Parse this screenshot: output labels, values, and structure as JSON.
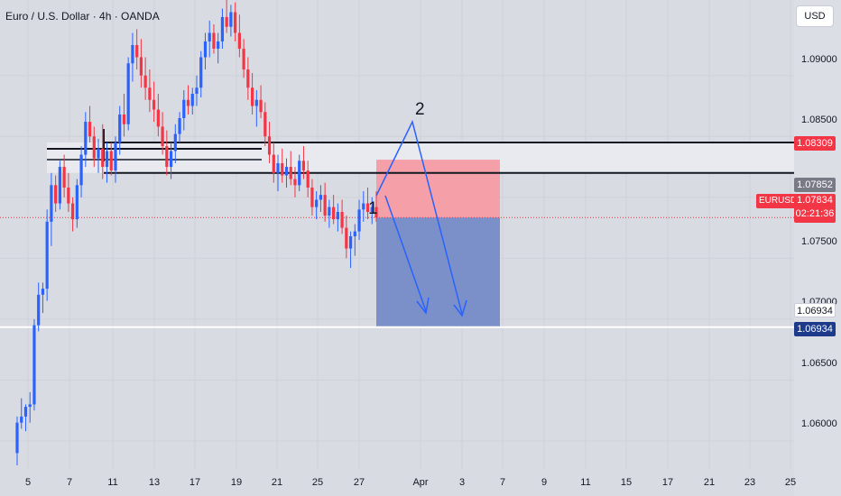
{
  "header": {
    "title": "Euro / U.S. Dollar · 4h · OANDA"
  },
  "currency_button": "USD",
  "price_axis": {
    "ticks": [
      "1.09000",
      "1.08500",
      "1.07500",
      "1.07000",
      "1.06500",
      "1.06000"
    ],
    "tags": {
      "resistance": "1.08309",
      "prev_close": "1.07852",
      "symbol": "EURUSD",
      "last": "1.07834",
      "countdown": "02:21:36",
      "support_white": "1.06934",
      "support_blue": "1.06934"
    }
  },
  "time_axis": {
    "ticks": [
      "5",
      "7",
      "11",
      "13",
      "17",
      "19",
      "21",
      "25",
      "27",
      "Apr",
      "3",
      "7",
      "9",
      "11",
      "15",
      "17",
      "21",
      "23",
      "25"
    ]
  },
  "annotations": {
    "wave1": "1",
    "wave2": "2"
  },
  "colors": {
    "bg": "#d9dbe2",
    "up": "#2962ff",
    "down": "#f23645",
    "zone": "#e9eaef",
    "stop": "#f5a0a8",
    "target": "#7b8fc9"
  },
  "chart_data": {
    "type": "candlestick",
    "symbol": "EURUSD",
    "timeframe": "4h",
    "ylim": [
      1.0577,
      1.0962
    ],
    "levels": {
      "resistance_top": 1.0845,
      "resistance_bottom": 1.082,
      "entry": 1.07834,
      "stop": 1.08309,
      "target": 1.06934
    },
    "candles": [
      [
        1.059,
        1.062,
        1.058,
        1.0615
      ],
      [
        1.0615,
        1.0635,
        1.061,
        1.062
      ],
      [
        1.062,
        1.063,
        1.0608,
        1.0628
      ],
      [
        1.0628,
        1.064,
        1.0615,
        1.063
      ],
      [
        1.063,
        1.07,
        1.0625,
        1.0695
      ],
      [
        1.0695,
        1.073,
        1.069,
        1.072
      ],
      [
        1.072,
        1.073,
        1.0705,
        1.0725
      ],
      [
        1.0725,
        1.079,
        1.0715,
        1.078
      ],
      [
        1.078,
        1.082,
        1.076,
        1.081
      ],
      [
        1.081,
        1.0818,
        1.0788,
        1.0795
      ],
      [
        1.0795,
        1.083,
        1.079,
        1.0825
      ],
      [
        1.0825,
        1.0835,
        1.08,
        1.0808
      ],
      [
        1.0808,
        1.082,
        1.0788,
        1.0795
      ],
      [
        1.0795,
        1.08,
        1.0772,
        1.0782
      ],
      [
        1.0782,
        1.0815,
        1.0775,
        1.081
      ],
      [
        1.081,
        1.0842,
        1.08,
        1.0835
      ],
      [
        1.0835,
        1.087,
        1.0825,
        1.0862
      ],
      [
        1.0862,
        1.0875,
        1.0845,
        1.085
      ],
      [
        1.085,
        1.0858,
        1.0825,
        1.0832
      ],
      [
        1.0832,
        1.0848,
        1.082,
        1.084
      ],
      [
        1.084,
        1.086,
        1.0815,
        1.0825
      ],
      [
        1.0825,
        1.0845,
        1.0812,
        1.0838
      ],
      [
        1.0838,
        1.0845,
        1.0818,
        1.0822
      ],
      [
        1.0822,
        1.085,
        1.0812,
        1.0845
      ],
      [
        1.0845,
        1.0875,
        1.0835,
        1.0868
      ],
      [
        1.0868,
        1.0885,
        1.085,
        1.086
      ],
      [
        1.086,
        1.0915,
        1.0855,
        1.091
      ],
      [
        1.091,
        1.0935,
        1.0895,
        1.0925
      ],
      [
        1.0925,
        1.0938,
        1.0905,
        1.0915
      ],
      [
        1.0915,
        1.093,
        1.089,
        1.09
      ],
      [
        1.09,
        1.0915,
        1.088,
        1.089
      ],
      [
        1.089,
        1.0905,
        1.087,
        1.088
      ],
      [
        1.088,
        1.0895,
        1.0862,
        1.0872
      ],
      [
        1.0872,
        1.0885,
        1.085,
        1.0858
      ],
      [
        1.0858,
        1.087,
        1.0835,
        1.0842
      ],
      [
        1.0842,
        1.0855,
        1.0818,
        1.0825
      ],
      [
        1.0825,
        1.0845,
        1.0815,
        1.0838
      ],
      [
        1.0838,
        1.086,
        1.0828,
        1.0852
      ],
      [
        1.0852,
        1.087,
        1.0845,
        1.0865
      ],
      [
        1.0865,
        1.0888,
        1.0855,
        1.088
      ],
      [
        1.088,
        1.0892,
        1.0868,
        1.0875
      ],
      [
        1.0875,
        1.089,
        1.0868,
        1.0885
      ],
      [
        1.0885,
        1.09,
        1.0875,
        1.089
      ],
      [
        1.089,
        1.092,
        1.0882,
        1.0915
      ],
      [
        1.0915,
        1.0935,
        1.0905,
        1.0928
      ],
      [
        1.0928,
        1.0945,
        1.0915,
        1.0935
      ],
      [
        1.0935,
        1.0942,
        1.0918,
        1.0922
      ],
      [
        1.0922,
        1.0935,
        1.091,
        1.0928
      ],
      [
        1.0928,
        1.0955,
        1.0922,
        1.0948
      ],
      [
        1.0948,
        1.0962,
        1.0935,
        1.094
      ],
      [
        1.094,
        1.0958,
        1.0932,
        1.0952
      ],
      [
        1.0952,
        1.096,
        1.0928,
        1.0935
      ],
      [
        1.0935,
        1.095,
        1.0915,
        1.0922
      ],
      [
        1.0922,
        1.093,
        1.0898,
        1.0905
      ],
      [
        1.0905,
        1.0915,
        1.088,
        1.089
      ],
      [
        1.089,
        1.0902,
        1.0868,
        1.0875
      ],
      [
        1.0875,
        1.0888,
        1.0858,
        1.088
      ],
      [
        1.088,
        1.0892,
        1.0865,
        1.087
      ],
      [
        1.087,
        1.0878,
        1.0842,
        1.085
      ],
      [
        1.085,
        1.0862,
        1.0828,
        1.0835
      ],
      [
        1.0835,
        1.0845,
        1.0812,
        1.082
      ],
      [
        1.082,
        1.0835,
        1.0805,
        1.0828
      ],
      [
        1.0828,
        1.084,
        1.0812,
        1.0818
      ],
      [
        1.0818,
        1.0832,
        1.0808,
        1.0825
      ],
      [
        1.0825,
        1.0838,
        1.081,
        1.0815
      ],
      [
        1.0815,
        1.0825,
        1.08,
        1.081
      ],
      [
        1.081,
        1.0835,
        1.0805,
        1.083
      ],
      [
        1.083,
        1.0842,
        1.0815,
        1.0822
      ],
      [
        1.0822,
        1.083,
        1.08,
        1.0808
      ],
      [
        1.0808,
        1.0815,
        1.0785,
        1.0792
      ],
      [
        1.0792,
        1.0805,
        1.0782,
        1.0798
      ],
      [
        1.0798,
        1.081,
        1.0788,
        1.0802
      ],
      [
        1.0802,
        1.0812,
        1.078,
        1.0785
      ],
      [
        1.0785,
        1.0798,
        1.0775,
        1.0792
      ],
      [
        1.0792,
        1.0802,
        1.0778,
        1.0782
      ],
      [
        1.0782,
        1.0795,
        1.0772,
        1.0788
      ],
      [
        1.0788,
        1.0798,
        1.077,
        1.0775
      ],
      [
        1.0775,
        1.0785,
        1.075,
        1.0758
      ],
      [
        1.0758,
        1.0772,
        1.0742,
        1.0768
      ],
      [
        1.0768,
        1.0778,
        1.0752,
        1.0772
      ],
      [
        1.0772,
        1.0798,
        1.0765,
        1.079
      ],
      [
        1.079,
        1.0805,
        1.078,
        1.0795
      ],
      [
        1.0795,
        1.0808,
        1.0782,
        1.0788
      ],
      [
        1.0788,
        1.08,
        1.0778,
        1.0792
      ],
      [
        1.0792,
        1.0805,
        1.078,
        1.07834
      ]
    ]
  }
}
